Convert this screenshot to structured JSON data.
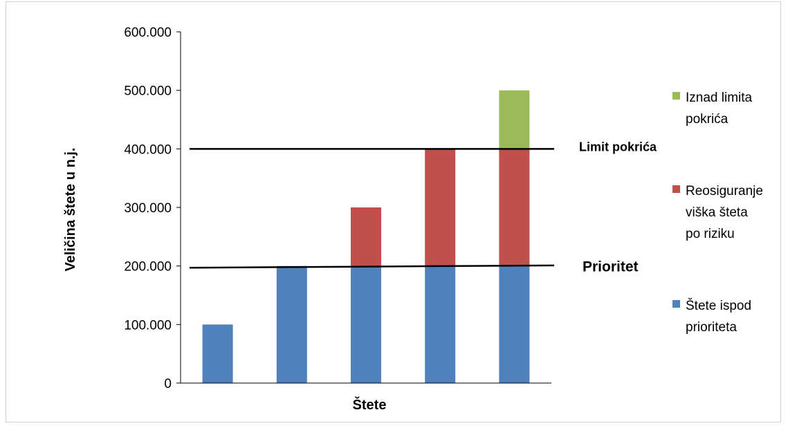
{
  "chart_data": {
    "type": "bar",
    "stacked": true,
    "title": "",
    "xlabel": "Štete",
    "ylabel": "Veličina štete u n.j.",
    "ylim": [
      0,
      600000
    ],
    "yticks": [
      0,
      100000,
      200000,
      300000,
      400000,
      500000,
      600000
    ],
    "ytick_labels": [
      "0",
      "100.000",
      "200.000",
      "300.000",
      "400.000",
      "500.000",
      "600.000"
    ],
    "categories": [
      "",
      "",
      "",
      "",
      ""
    ],
    "series": [
      {
        "name": "Štete ispod prioriteta",
        "color": "#4f81bd",
        "values": [
          100000,
          200000,
          200000,
          200000,
          200000
        ]
      },
      {
        "name": "Reosiguranje viška šteta po riziku",
        "color": "#c0504d",
        "values": [
          0,
          0,
          100000,
          200000,
          200000
        ]
      },
      {
        "name": "Iznad limita pokrića",
        "color": "#9bbb59",
        "values": [
          0,
          0,
          0,
          0,
          100000
        ]
      }
    ],
    "legend_placement": "right",
    "legend_entries": [
      {
        "series_index": 2,
        "lines": [
          "Iznad limita",
          "pokrića"
        ]
      },
      {
        "series_index": 1,
        "lines": [
          "Reosiguranje",
          "viška šteta",
          "po riziku"
        ]
      },
      {
        "series_index": 0,
        "lines": [
          "Štete ispod",
          "prioriteta"
        ]
      }
    ],
    "reference_lines": [
      {
        "label": "Limit pokrića",
        "value_start": 400000,
        "value_end": 400000
      },
      {
        "label": "Prioritet",
        "value_start": 197000,
        "value_end": 201000
      }
    ],
    "grid": false
  }
}
